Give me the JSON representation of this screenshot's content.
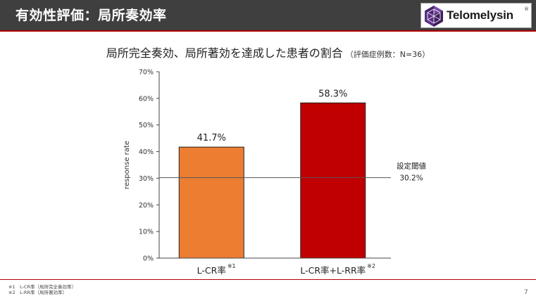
{
  "header": {
    "title": "有効性評価：局所奏効率"
  },
  "logo": {
    "text": "Telomelysin",
    "mark": "®"
  },
  "chart_title": {
    "main": "局所完全奏効、局所著効を達成した患者の割合",
    "note": "（評価症例数：N=36）"
  },
  "chart_data": {
    "type": "bar",
    "categories": [
      "L-CR率",
      "L-CR率+L-RR率"
    ],
    "category_notes": [
      "※1",
      "※2"
    ],
    "values": [
      41.7,
      58.3
    ],
    "value_labels": [
      "41.7%",
      "58.3%"
    ],
    "colors": [
      "#ed7d31",
      "#c00000"
    ],
    "ylabel": "response rate",
    "ylim": [
      0,
      70
    ],
    "yticks": [
      0,
      10,
      20,
      30,
      40,
      50,
      60,
      70
    ],
    "ytick_labels": [
      "0%",
      "10%",
      "20%",
      "30%",
      "40%",
      "50%",
      "60%",
      "70%"
    ],
    "threshold": {
      "value": 30.2,
      "label": "設定閾値",
      "value_label": "30.2%"
    }
  },
  "footnotes": [
    "※1　L-CR率（局所完全奏効率）",
    "※2　L-RR率（局所著効率）"
  ],
  "page_number": "7"
}
